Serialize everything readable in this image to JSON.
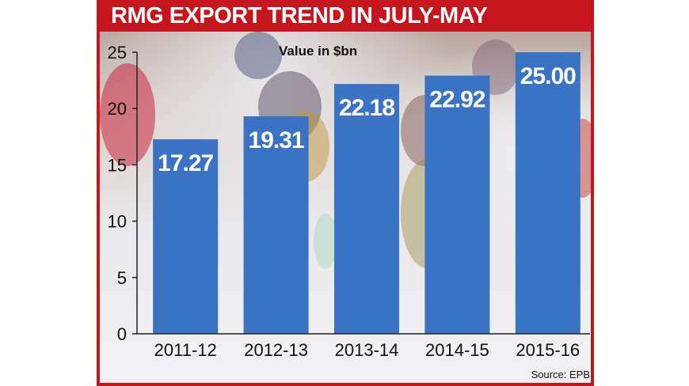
{
  "title": "RMG EXPORT TREND IN JULY-MAY",
  "source": "Source: EPB",
  "colors": {
    "frame": "#c4161c",
    "bar": "#3a73c3",
    "axis": "#222222"
  },
  "chart_data": {
    "type": "bar",
    "title": "RMG EXPORT TREND IN JULY-MAY",
    "ylabel": "Value in $bn",
    "xlabel": "",
    "categories": [
      "2011-12",
      "2012-13",
      "2013-14",
      "2014-15",
      "2015-16"
    ],
    "values": [
      17.27,
      19.31,
      22.18,
      22.92,
      25.0
    ],
    "value_labels": [
      "17.27",
      "19.31",
      "22.18",
      "22.92",
      "25.00"
    ],
    "ylim": [
      0,
      25
    ],
    "yticks": [
      0,
      5,
      10,
      15,
      20,
      25
    ],
    "grid": false,
    "legend": "none"
  }
}
